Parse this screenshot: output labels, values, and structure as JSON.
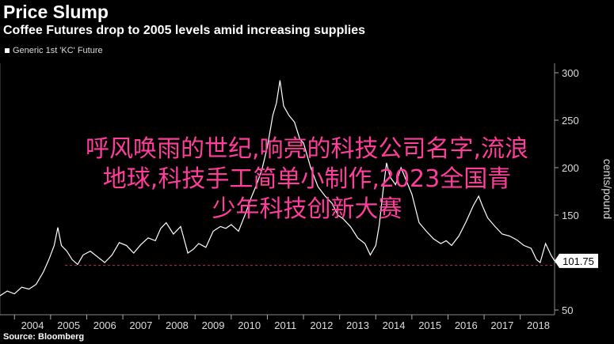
{
  "header": {
    "title": "Price Slump",
    "subtitle": "Coffee Futures drop to 2005 levels amid increasing supplies"
  },
  "legend": {
    "label": "Generic 1st 'KC' Future"
  },
  "source": "Source: Bloomberg",
  "overlay_text": {
    "line1": "呼风唤雨的世纪,响亮的科技公司名字,流浪",
    "line2": "地球,科技手工简单小制作,2023全国青",
    "line3": "少年科技创新大赛"
  },
  "colors": {
    "line": "#ffffff",
    "reference": "#c0305a",
    "background": "#000000",
    "overlay": "#ff3d9a"
  },
  "chart_data": {
    "type": "line",
    "ylabel": "cents/pound",
    "xlim": [
      2003.6,
      2018.95
    ],
    "ylim": [
      45,
      310
    ],
    "yticks": [
      50,
      100,
      150,
      200,
      250,
      300
    ],
    "xticks": [
      "2004",
      "2005",
      "2006",
      "2007",
      "2008",
      "2009",
      "2010",
      "2011",
      "2012",
      "2013",
      "2014",
      "2015",
      "2016",
      "2017",
      "2018"
    ],
    "last_value": "101.75",
    "reference_value": 97,
    "series": [
      {
        "values": [
          [
            2003.6,
            65
          ],
          [
            2003.8,
            70
          ],
          [
            2004.0,
            67
          ],
          [
            2004.2,
            74
          ],
          [
            2004.4,
            72
          ],
          [
            2004.6,
            77
          ],
          [
            2004.8,
            90
          ],
          [
            2004.95,
            103
          ],
          [
            2005.1,
            118
          ],
          [
            2005.2,
            137
          ],
          [
            2005.3,
            118
          ],
          [
            2005.45,
            112
          ],
          [
            2005.6,
            103
          ],
          [
            2005.75,
            98
          ],
          [
            2005.9,
            108
          ],
          [
            2006.1,
            112
          ],
          [
            2006.3,
            106
          ],
          [
            2006.5,
            100
          ],
          [
            2006.7,
            108
          ],
          [
            2006.9,
            121
          ],
          [
            2007.1,
            118
          ],
          [
            2007.3,
            110
          ],
          [
            2007.5,
            119
          ],
          [
            2007.7,
            126
          ],
          [
            2007.9,
            123
          ],
          [
            2008.05,
            136
          ],
          [
            2008.2,
            142
          ],
          [
            2008.4,
            130
          ],
          [
            2008.6,
            138
          ],
          [
            2008.8,
            110
          ],
          [
            2008.95,
            114
          ],
          [
            2009.1,
            120
          ],
          [
            2009.3,
            116
          ],
          [
            2009.5,
            133
          ],
          [
            2009.7,
            138
          ],
          [
            2009.85,
            136
          ],
          [
            2010.0,
            140
          ],
          [
            2010.2,
            133
          ],
          [
            2010.4,
            152
          ],
          [
            2010.55,
            168
          ],
          [
            2010.7,
            182
          ],
          [
            2010.85,
            198
          ],
          [
            2011.0,
            222
          ],
          [
            2011.15,
            255
          ],
          [
            2011.25,
            268
          ],
          [
            2011.35,
            292
          ],
          [
            2011.45,
            265
          ],
          [
            2011.6,
            255
          ],
          [
            2011.75,
            248
          ],
          [
            2011.9,
            230
          ],
          [
            2012.0,
            226
          ],
          [
            2012.2,
            200
          ],
          [
            2012.4,
            180
          ],
          [
            2012.6,
            170
          ],
          [
            2012.8,
            162
          ],
          [
            2012.95,
            150
          ],
          [
            2013.1,
            146
          ],
          [
            2013.3,
            138
          ],
          [
            2013.5,
            126
          ],
          [
            2013.7,
            120
          ],
          [
            2013.85,
            108
          ],
          [
            2014.0,
            118
          ],
          [
            2014.1,
            140
          ],
          [
            2014.2,
            175
          ],
          [
            2014.3,
            205
          ],
          [
            2014.4,
            190
          ],
          [
            2014.55,
            182
          ],
          [
            2014.7,
            200
          ],
          [
            2014.85,
            186
          ],
          [
            2015.0,
            172
          ],
          [
            2015.2,
            142
          ],
          [
            2015.4,
            133
          ],
          [
            2015.6,
            125
          ],
          [
            2015.8,
            120
          ],
          [
            2015.95,
            123
          ],
          [
            2016.1,
            118
          ],
          [
            2016.3,
            128
          ],
          [
            2016.5,
            143
          ],
          [
            2016.7,
            160
          ],
          [
            2016.85,
            170
          ],
          [
            2016.95,
            160
          ],
          [
            2017.1,
            147
          ],
          [
            2017.3,
            138
          ],
          [
            2017.5,
            130
          ],
          [
            2017.7,
            128
          ],
          [
            2017.9,
            124
          ],
          [
            2018.1,
            118
          ],
          [
            2018.3,
            115
          ],
          [
            2018.45,
            103
          ],
          [
            2018.55,
            100
          ],
          [
            2018.7,
            120
          ],
          [
            2018.85,
            108
          ],
          [
            2018.95,
            101.75
          ]
        ]
      }
    ]
  }
}
